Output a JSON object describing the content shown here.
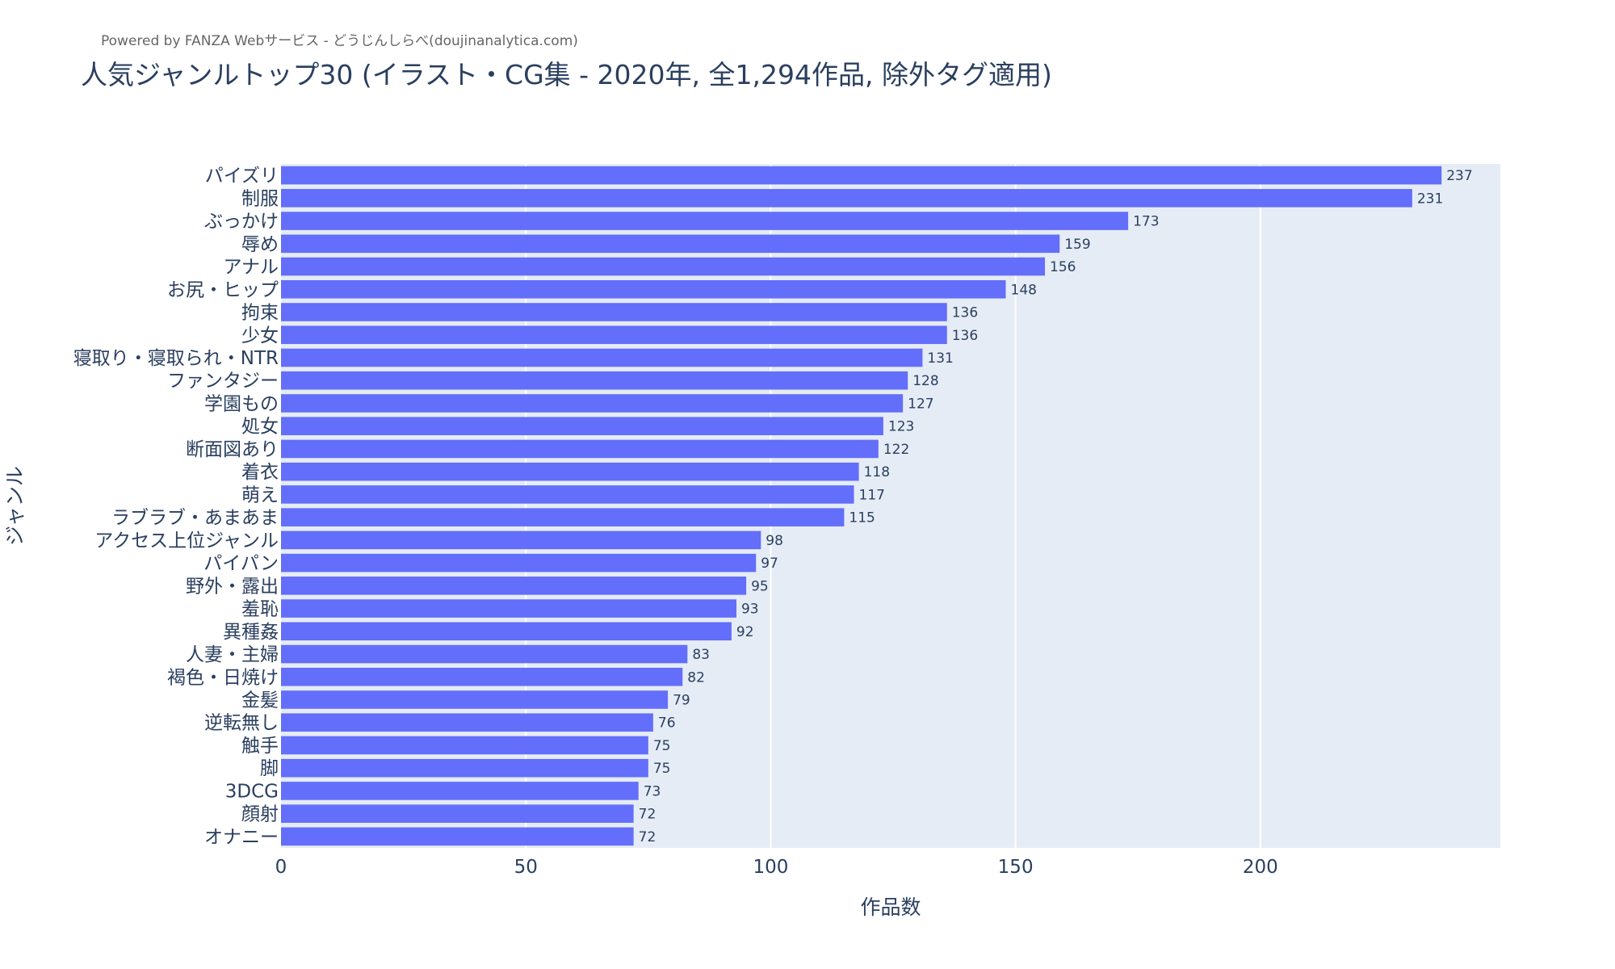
{
  "page": {
    "credit": "Powered by FANZA Webサービス - どうじんしらべ(doujinanalytica.com)",
    "title": "人気ジャンルトップ30 (イラスト・CG集 - 2020年, 全1,294作品, 除外タグ適用)"
  },
  "chart_data": {
    "type": "bar",
    "orientation": "horizontal",
    "title": "人気ジャンルトップ30 (イラスト・CG集 - 2020年, 全1,294作品, 除外タグ適用)",
    "xlabel": "作品数",
    "ylabel": "ジャンル",
    "xlim": [
      0,
      249
    ],
    "xticks": [
      0,
      50,
      100,
      150,
      200
    ],
    "grid": true,
    "bar_color": "#636efa",
    "plot_background": "#e5ecf6",
    "categories": [
      "パイズリ",
      "制服",
      "ぶっかけ",
      "辱め",
      "アナル",
      "お尻・ヒップ",
      "拘束",
      "少女",
      "寝取り・寝取られ・NTR",
      "ファンタジー",
      "学園もの",
      "処女",
      "断面図あり",
      "着衣",
      "萌え",
      "ラブラブ・あまあま",
      "アクセス上位ジャンル",
      "パイパン",
      "野外・露出",
      "羞恥",
      "異種姦",
      "人妻・主婦",
      "褐色・日焼け",
      "金髪",
      "逆転無し",
      "触手",
      "脚",
      "3DCG",
      "顔射",
      "オナニー"
    ],
    "values": [
      237,
      231,
      173,
      159,
      156,
      148,
      136,
      136,
      131,
      128,
      127,
      123,
      122,
      118,
      117,
      115,
      98,
      97,
      95,
      93,
      92,
      83,
      82,
      79,
      76,
      75,
      75,
      73,
      72,
      72
    ]
  }
}
